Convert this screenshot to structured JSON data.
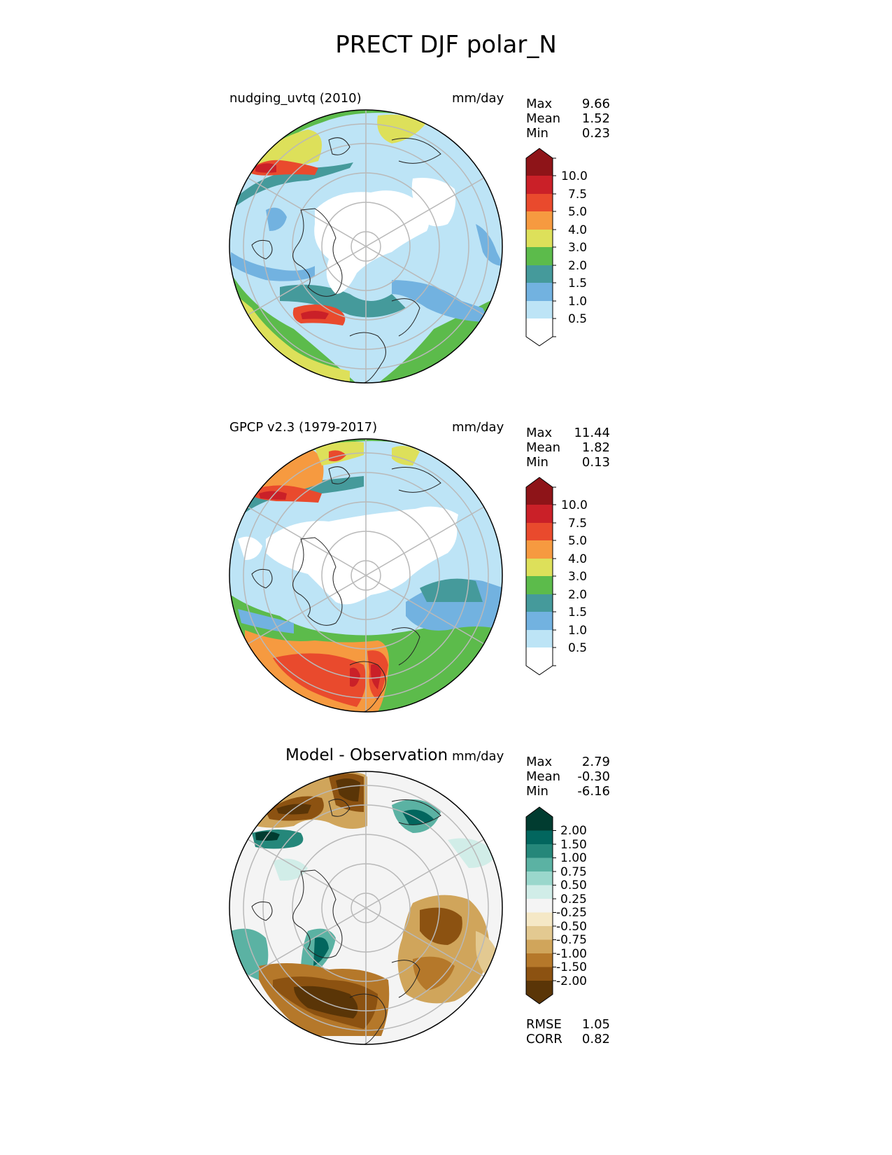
{
  "figure": {
    "title": "PRECT DJF polar_N"
  },
  "panels": [
    {
      "id": "test",
      "title": "nudging_uvtq (2010)",
      "units": "mm/day",
      "stats": [
        {
          "label": "Max",
          "value": "9.66"
        },
        {
          "label": "Mean",
          "value": "1.52"
        },
        {
          "label": "Min",
          "value": "0.23"
        }
      ]
    },
    {
      "id": "reference",
      "title": "GPCP v2.3 (1979-2017)",
      "units": "mm/day",
      "stats": [
        {
          "label": "Max",
          "value": "11.44"
        },
        {
          "label": "Mean",
          "value": "1.82"
        },
        {
          "label": "Min",
          "value": "0.13"
        }
      ]
    },
    {
      "id": "difference",
      "title": "Model - Observation",
      "units": "mm/day",
      "stats": [
        {
          "label": "Max",
          "value": "2.79"
        },
        {
          "label": "Mean",
          "value": "-0.30"
        },
        {
          "label": "Min",
          "value": "-6.16"
        }
      ],
      "extra_stats": [
        {
          "label": "RMSE",
          "value": "1.05"
        },
        {
          "label": "CORR",
          "value": "0.82"
        }
      ]
    }
  ],
  "colorbars": {
    "precip": {
      "ticks": [
        "10.0",
        "7.5",
        "5.0",
        "4.0",
        "3.0",
        "2.0",
        "1.5",
        "1.0",
        "0.5"
      ],
      "colors": [
        "#ffffff",
        "#bde4f6",
        "#72b2e0",
        "#459a9b",
        "#5cbb4b",
        "#dde05a",
        "#f69a40",
        "#e94a2d",
        "#ca2028",
        "#8e1418"
      ]
    },
    "diff": {
      "ticks": [
        "2.00",
        "1.50",
        "1.00",
        "0.75",
        "0.50",
        "0.25",
        "-0.25",
        "-0.50",
        "-0.75",
        "-1.00",
        "-1.50",
        "-2.00"
      ],
      "colors": [
        "#5a3507",
        "#8c5211",
        "#b5782a",
        "#d0a55b",
        "#e3c991",
        "#f5e8c6",
        "#f4f4f4",
        "#d1ede8",
        "#9ad7cc",
        "#5bb2a3",
        "#25877a",
        "#02665e",
        "#013c30"
      ]
    }
  }
}
